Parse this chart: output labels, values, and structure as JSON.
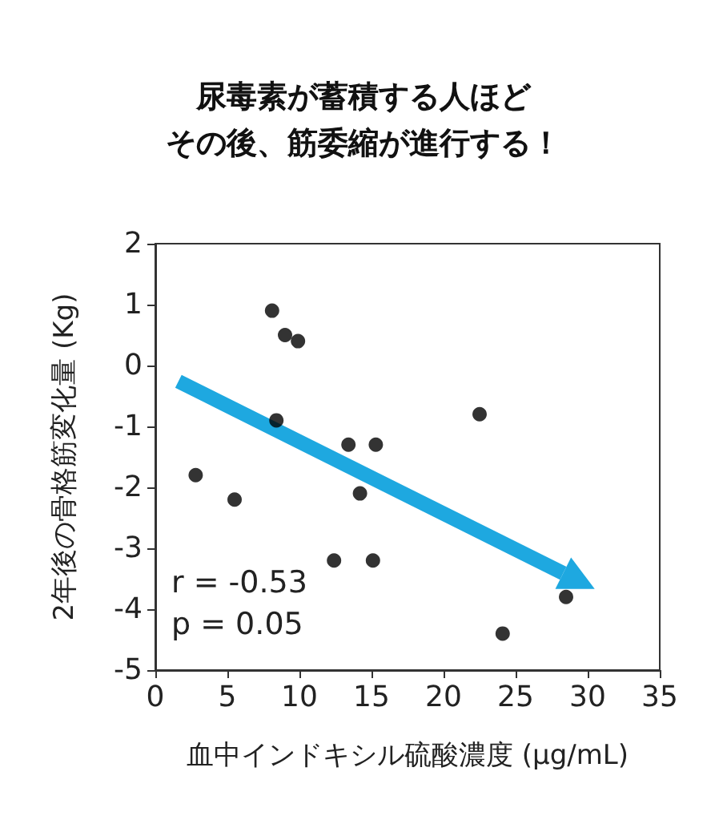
{
  "chart_data": {
    "type": "scatter",
    "title": "尿毒素が蓄積する人ほど",
    "subtitle": "その後、筋委縮が進行する！",
    "xlabel": "血中インドキシル硫酸濃度 (μg/mL)",
    "ylabel": "2年後の骨格筋変化量 (Kg)",
    "annotations": [
      "r = -0.53",
      "p = 0.05"
    ],
    "series": [
      {
        "color": "#000000",
        "x": [
          8.1,
          9.0,
          9.9,
          8.4,
          2.8,
          5.5,
          13.4,
          15.3,
          14.2,
          12.4,
          15.1,
          22.5,
          24.1,
          28.5
        ],
        "values": [
          0.9,
          0.5,
          0.4,
          -0.9,
          -1.8,
          -2.2,
          -1.3,
          -1.3,
          -2.1,
          -3.2,
          -3.2,
          -0.8,
          -4.4,
          -3.8
        ]
      },
      {
        "type": "line",
        "marker": "none",
        "color": "#1ea8e0",
        "x": [
          1.6,
          28.3
        ],
        "values": [
          -0.26,
          -3.41
        ]
      }
    ],
    "xlim": [
      0,
      35
    ],
    "xticks": [
      0,
      5,
      10,
      15,
      20,
      25,
      30,
      35
    ],
    "ylim": [
      -5,
      2
    ],
    "yticks": [
      -5,
      -4,
      -3,
      -2,
      -1,
      0,
      1,
      2
    ],
    "grid": false,
    "marker": "circle"
  }
}
